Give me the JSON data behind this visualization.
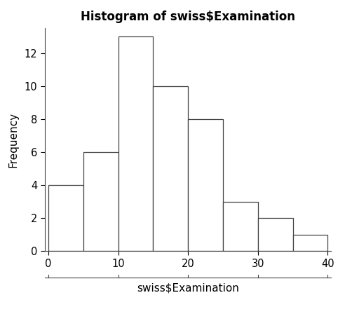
{
  "title": "Histogram of swiss$Examination",
  "xlabel": "swiss$Examination",
  "ylabel": "Frequency",
  "bin_edges": [
    0,
    5,
    10,
    15,
    20,
    25,
    30,
    35,
    40
  ],
  "frequencies": [
    4,
    6,
    13,
    10,
    8,
    3,
    2,
    1
  ],
  "bar_color": "#ffffff",
  "bar_edge_color": "#444444",
  "xlim": [
    -0.5,
    40.5
  ],
  "ylim": [
    0,
    13.5
  ],
  "xticks": [
    0,
    10,
    20,
    30,
    40
  ],
  "yticks": [
    0,
    2,
    4,
    6,
    8,
    10,
    12
  ],
  "background_color": "#ffffff",
  "title_fontsize": 12,
  "label_fontsize": 11,
  "tick_fontsize": 10.5
}
